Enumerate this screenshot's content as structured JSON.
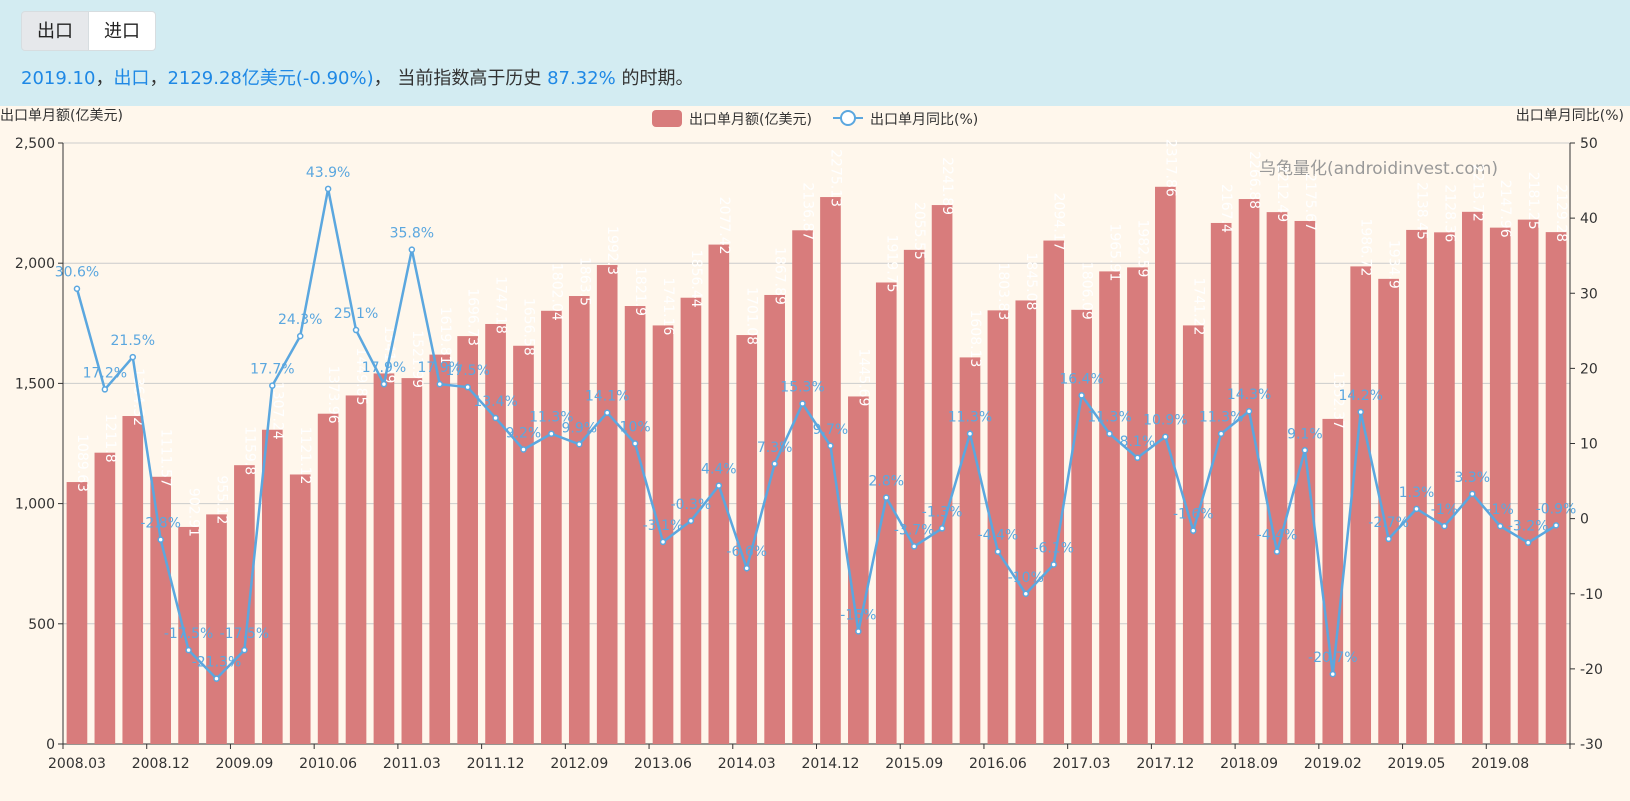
{
  "tabs": [
    {
      "label": "出口",
      "active": true
    },
    {
      "label": "进口",
      "active": false
    }
  ],
  "summary": {
    "period": "2019.10",
    "sep1": "，",
    "type": "出口",
    "sep2": "，",
    "value": "2129.28亿美元",
    "change": "(-0.90%)",
    "sep3": "， 当前指数高于历史",
    "percentile": "87.32%",
    "suffix": "的时期。"
  },
  "colors": {
    "bar": "#d87c7c",
    "line": "#5ba7df",
    "header_bg": "#d3ecf2",
    "chart_bg": "#fff7ec"
  },
  "chart_data": {
    "type": "bar+line",
    "left_axis_label": "出口单月额(亿美元)",
    "right_axis_label": "出口单月同比(%)",
    "watermark": "乌龟量化(androidinvest.com)",
    "legend": [
      "出口单月额(亿美元)",
      "出口单月同比(%)"
    ],
    "legend_position": "top-center",
    "y_left": {
      "min": 0,
      "max": 2500,
      "ticks": [
        0,
        500,
        1000,
        1500,
        2000,
        2500
      ],
      "tick_labels": [
        "0",
        "500",
        "1,000",
        "1,500",
        "2,000",
        "2,500"
      ]
    },
    "y_right": {
      "min": -30,
      "max": 50,
      "ticks": [
        -30,
        -20,
        -10,
        0,
        10,
        20,
        30,
        40,
        50
      ],
      "tick_labels": [
        "-30",
        "-20",
        "-10",
        "0",
        "10",
        "20",
        "30",
        "40",
        "50"
      ]
    },
    "x_tick_labels": [
      {
        "index": 0,
        "label": "2008.03"
      },
      {
        "index": 3,
        "label": "2008.12"
      },
      {
        "index": 6,
        "label": "2009.09"
      },
      {
        "index": 9,
        "label": "2010.06"
      },
      {
        "index": 12,
        "label": "2011.03"
      },
      {
        "index": 15,
        "label": "2011.12"
      },
      {
        "index": 18,
        "label": "2012.09"
      },
      {
        "index": 21,
        "label": "2013.06"
      },
      {
        "index": 24,
        "label": "2014.03"
      },
      {
        "index": 27,
        "label": "2014.12"
      },
      {
        "index": 30,
        "label": "2015.09"
      },
      {
        "index": 33,
        "label": "2016.06"
      },
      {
        "index": 36,
        "label": "2017.03"
      },
      {
        "index": 39,
        "label": "2017.12"
      },
      {
        "index": 42,
        "label": "2018.09"
      },
      {
        "index": 45,
        "label": "2019.02"
      },
      {
        "index": 48,
        "label": "2019.05"
      },
      {
        "index": 51,
        "label": "2019.08"
      }
    ],
    "bar_values": [
      1089.63,
      1211.8,
      1364.32,
      1111.57,
      902.91,
      955.12,
      1159.8,
      1307.24,
      1121.12,
      1373.96,
      1449.85,
      1541.49,
      1521.99,
      1619.81,
      1696.73,
      1747.18,
      1656.58,
      1802.04,
      1863.5,
      1992.3,
      1821.9,
      1741.16,
      1856.44,
      2077.42,
      1701.08,
      1867.89,
      2136.87,
      2275.13,
      1445.69,
      1919.75,
      2055.55,
      2241.89,
      1608.13,
      1803.83,
      1845.08,
      2094.17,
      1806.09,
      1965.91,
      1982.59,
      2317.86,
      1741.22,
      2167.4,
      2266.88,
      2212.49,
      2175.67,
      1352.37,
      1986.72,
      1934.9,
      2138.45,
      2128.36,
      2213.72,
      2147.96,
      2181.25,
      2129.28
    ],
    "bar_labels": [
      "1089.63",
      "1211.8",
      "1364.32",
      "1111.57",
      "902.91",
      "955.12",
      "1159.8",
      "1307.24",
      "1121.12",
      "1373.96",
      "1449.85",
      "1541.49",
      "1521.99",
      "1619.81",
      "1696.73",
      "1747.18",
      "1656.58",
      "1802.04",
      "1863.5",
      "1992.3",
      "1821.9",
      "1741.16",
      "1856.44",
      "2077.42",
      "1701.08",
      "1867.89",
      "2136.87",
      "2275.13",
      "1445.69",
      "1919.75",
      "2055.55",
      "2241.89",
      "1608.13",
      "1803.83",
      "1845.08",
      "2094.17",
      "1806.09",
      "1965.91",
      "1982.59",
      "2317.86",
      "1741.22",
      "2167.4",
      "2266.88",
      "2212.49",
      "2175.67",
      "1352.37",
      "1986.72",
      "1934.9",
      "2138.45",
      "2128.36",
      "2213.72",
      "2147.96",
      "2181.25",
      "2129.28"
    ],
    "line_values": [
      30.6,
      17.2,
      21.5,
      -2.8,
      -17.5,
      -21.3,
      -17.5,
      17.7,
      24.3,
      43.9,
      25.1,
      17.9,
      35.8,
      17.9,
      17.5,
      13.4,
      9.2,
      11.3,
      9.9,
      14.1,
      10,
      -3.1,
      -0.3,
      4.4,
      -6.6,
      7.3,
      15.3,
      9.7,
      -15,
      2.8,
      -3.7,
      -1.3,
      11.3,
      -4.4,
      -10,
      -6.1,
      16.4,
      11.3,
      8.1,
      10.9,
      -1.6,
      11.3,
      14.3,
      -4.4,
      9.1,
      -20.7,
      14.2,
      -2.7,
      1.3,
      -1,
      3.3,
      -1,
      -3.2,
      -0.9
    ],
    "line_labels": [
      "30.6%",
      "17.2%",
      "21.5%",
      "-2.8%",
      "-17.5%",
      "-21.3%",
      "-17.5%",
      "17.7%",
      "24.3%",
      "43.9%",
      "25.1%",
      "17.9%",
      "35.8%",
      "17.9%",
      "17.5%",
      "13.4%",
      "9.2%",
      "11.3%",
      "9.9%",
      "14.1%",
      "10%",
      "-3.1%",
      "-0.3%",
      "4.4%",
      "-6.6%",
      "7.3%",
      "15.3%",
      "9.7%",
      "-15%",
      "2.8%",
      "-3.7%",
      "-1.3%",
      "11.3%",
      "-4.4%",
      "-10%",
      "-6.1%",
      "16.4%",
      "11.3%",
      "8.1%",
      "10.9%",
      "-1.6%",
      "11.3%",
      "14.3%",
      "-4.4%",
      "9.1%",
      "-20.7%",
      "14.2%",
      "-2.7%",
      "1.3%",
      "-1%",
      "3.3%",
      "-1%",
      "-3.2%",
      "-0.9%"
    ]
  }
}
